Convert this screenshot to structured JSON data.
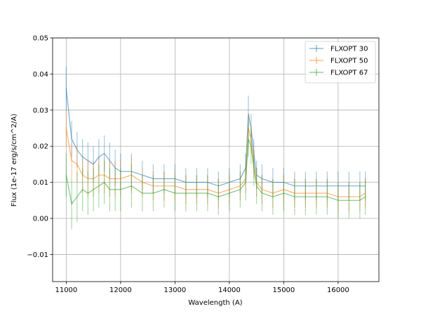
{
  "chart_data": {
    "type": "line",
    "title": "",
    "xlabel": "Wavelength (A)",
    "ylabel": "Flux (1e-17 erg/s/cm^2/A)",
    "xlim": [
      10750,
      16750
    ],
    "ylim": [
      -0.0175,
      0.05
    ],
    "xticks": [
      11000,
      12000,
      13000,
      14000,
      15000,
      16000
    ],
    "yticks": [
      -0.01,
      0.0,
      0.01,
      0.02,
      0.03,
      0.04,
      0.05
    ],
    "ytick_labels": [
      "−0.01",
      "0.00",
      "0.01",
      "0.02",
      "0.03",
      "0.04",
      "0.05"
    ],
    "grid": true,
    "legend_position": "top-right",
    "series": [
      {
        "name": "FLXOPT 30",
        "color": "#1f77b4",
        "x": [
          11000,
          11100,
          11200,
          11300,
          11400,
          11500,
          11600,
          11700,
          11800,
          11900,
          12000,
          12200,
          12400,
          12600,
          12800,
          13000,
          13200,
          13400,
          13600,
          13800,
          14000,
          14200,
          14300,
          14350,
          14400,
          14450,
          14500,
          14600,
          14800,
          15000,
          15200,
          15400,
          15600,
          15800,
          16000,
          16200,
          16400,
          16500
        ],
        "y": [
          0.036,
          0.022,
          0.019,
          0.017,
          0.016,
          0.015,
          0.017,
          0.018,
          0.016,
          0.014,
          0.013,
          0.013,
          0.012,
          0.011,
          0.011,
          0.011,
          0.01,
          0.01,
          0.01,
          0.009,
          0.01,
          0.011,
          0.014,
          0.029,
          0.025,
          0.018,
          0.012,
          0.011,
          0.01,
          0.01,
          0.009,
          0.009,
          0.009,
          0.009,
          0.009,
          0.009,
          0.009,
          0.009
        ],
        "err": [
          0.006,
          0.005,
          0.005,
          0.005,
          0.005,
          0.005,
          0.005,
          0.005,
          0.005,
          0.005,
          0.005,
          0.005,
          0.004,
          0.004,
          0.004,
          0.004,
          0.004,
          0.004,
          0.004,
          0.004,
          0.004,
          0.004,
          0.004,
          0.005,
          0.004,
          0.004,
          0.004,
          0.004,
          0.004,
          0.004,
          0.004,
          0.004,
          0.004,
          0.004,
          0.004,
          0.004,
          0.004,
          0.004
        ]
      },
      {
        "name": "FLXOPT 50",
        "color": "#ff7f0e",
        "x": [
          11000,
          11100,
          11200,
          11300,
          11400,
          11500,
          11600,
          11700,
          11800,
          11900,
          12000,
          12200,
          12400,
          12600,
          12800,
          13000,
          13200,
          13400,
          13600,
          13800,
          14000,
          14200,
          14300,
          14350,
          14400,
          14450,
          14500,
          14600,
          14800,
          15000,
          15200,
          15400,
          15600,
          15800,
          16000,
          16200,
          16400,
          16500
        ],
        "y": [
          0.025,
          0.016,
          0.015,
          0.012,
          0.011,
          0.011,
          0.012,
          0.012,
          0.011,
          0.011,
          0.011,
          0.012,
          0.01,
          0.009,
          0.009,
          0.009,
          0.008,
          0.008,
          0.008,
          0.007,
          0.008,
          0.009,
          0.011,
          0.025,
          0.022,
          0.015,
          0.01,
          0.008,
          0.007,
          0.008,
          0.007,
          0.007,
          0.007,
          0.007,
          0.006,
          0.006,
          0.006,
          0.007
        ],
        "err": [
          0.005,
          0.005,
          0.005,
          0.005,
          0.005,
          0.005,
          0.005,
          0.005,
          0.005,
          0.005,
          0.005,
          0.005,
          0.004,
          0.004,
          0.004,
          0.004,
          0.004,
          0.004,
          0.004,
          0.004,
          0.004,
          0.004,
          0.004,
          0.004,
          0.004,
          0.004,
          0.004,
          0.004,
          0.004,
          0.004,
          0.004,
          0.004,
          0.004,
          0.004,
          0.004,
          0.004,
          0.004,
          0.004
        ]
      },
      {
        "name": "FLXOPT 67",
        "color": "#2ca02c",
        "x": [
          11000,
          11100,
          11200,
          11300,
          11400,
          11500,
          11600,
          11700,
          11800,
          11900,
          12000,
          12200,
          12400,
          12600,
          12800,
          13000,
          13200,
          13400,
          13600,
          13800,
          14000,
          14200,
          14300,
          14350,
          14400,
          14450,
          14500,
          14600,
          14800,
          15000,
          15200,
          15400,
          15600,
          15800,
          16000,
          16200,
          16400,
          16500
        ],
        "y": [
          0.012,
          0.004,
          0.006,
          0.008,
          0.007,
          0.008,
          0.009,
          0.01,
          0.008,
          0.008,
          0.008,
          0.009,
          0.007,
          0.007,
          0.008,
          0.007,
          0.007,
          0.007,
          0.007,
          0.006,
          0.007,
          0.008,
          0.01,
          0.022,
          0.02,
          0.014,
          0.009,
          0.007,
          0.006,
          0.007,
          0.006,
          0.006,
          0.006,
          0.006,
          0.005,
          0.005,
          0.005,
          0.006
        ],
        "err": [
          0.006,
          0.007,
          0.007,
          0.006,
          0.006,
          0.006,
          0.006,
          0.006,
          0.006,
          0.006,
          0.006,
          0.006,
          0.005,
          0.005,
          0.005,
          0.005,
          0.005,
          0.005,
          0.005,
          0.005,
          0.005,
          0.005,
          0.005,
          0.005,
          0.005,
          0.005,
          0.005,
          0.005,
          0.005,
          0.005,
          0.005,
          0.005,
          0.005,
          0.005,
          0.005,
          0.005,
          0.005,
          0.005
        ]
      }
    ]
  }
}
